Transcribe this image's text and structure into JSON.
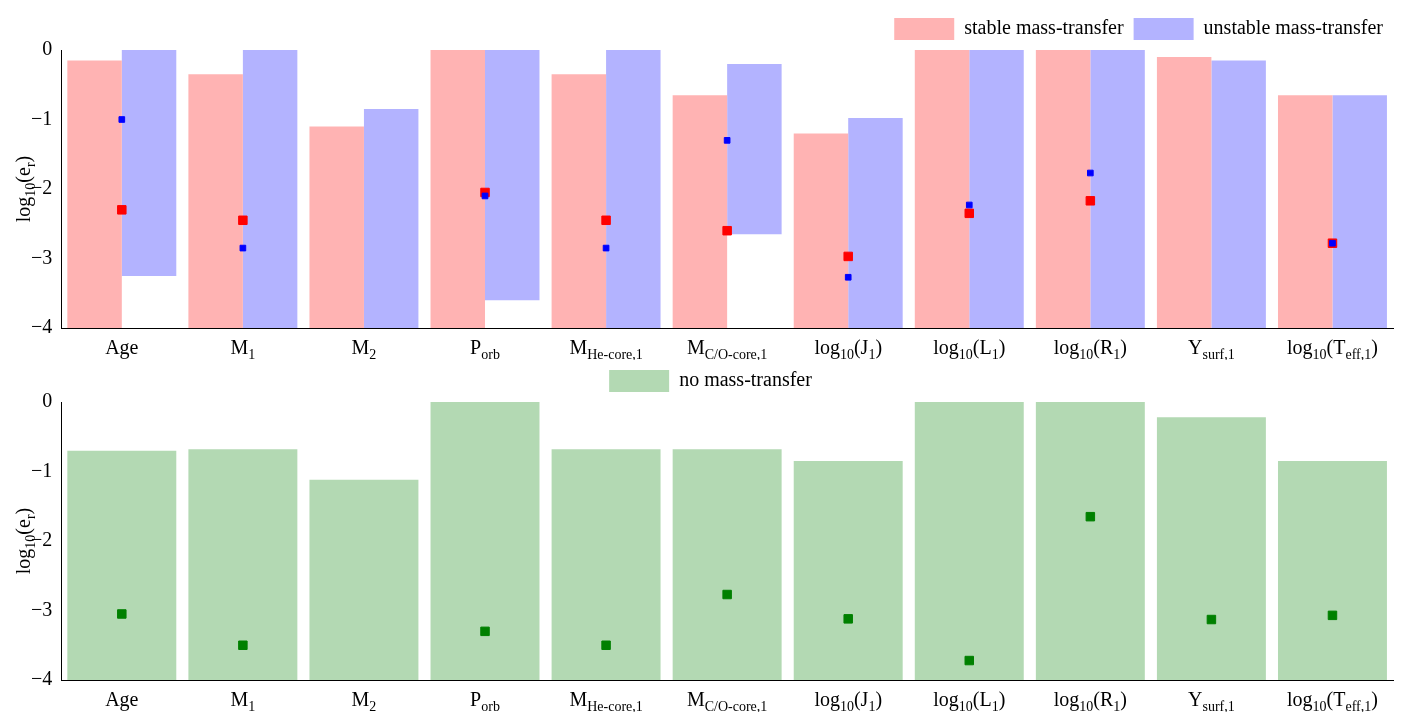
{
  "chart_data": [
    {
      "type": "bar",
      "ylabel": "log$_{10}$(e$_{r}$)",
      "categories": [
        "Age",
        "M$_{1}$",
        "M$_{2}$",
        "P$_{orb}$",
        "M$_{He-core,1}$",
        "M$_{C/O-core,1}$",
        "log$_{10}$(J$_{1}$)",
        "log$_{10}$(L$_{1}$)",
        "log$_{10}$(R$_{1}$)",
        "Y$_{surf,1}$",
        "log$_{10}$(T$_{eff,1}$)"
      ],
      "series": [
        {
          "name": "stable mass-transfer",
          "color": "#ffb3b3",
          "base": [
            -4,
            -4,
            -4,
            -4,
            -4,
            -4,
            -4,
            -4,
            -4,
            -4,
            -4
          ],
          "values": [
            3.85,
            3.65,
            2.9,
            4,
            3.65,
            3.35,
            2.8,
            4,
            4,
            3.9,
            3.35
          ]
        },
        {
          "name": "unstable mass-transfer",
          "color": "#b3b3ff",
          "base": [
            -3.25,
            -4,
            -4,
            -3.6,
            -4,
            -2.65,
            -4,
            -4,
            -4,
            -4,
            -4
          ],
          "values": [
            3.25,
            4,
            3.15,
            3.6,
            4,
            2.45,
            3.02,
            4,
            4,
            3.85,
            3.35
          ]
        },
        {
          "type": "scatter",
          "color": "#ff0000",
          "values": [
            -2.3,
            -2.45,
            null,
            -2.05,
            -2.45,
            -2.6,
            -2.97,
            -2.35,
            -2.17,
            null,
            -2.78
          ]
        },
        {
          "type": "scatter",
          "color": "#0000ff",
          "values": [
            -1.0,
            -2.85,
            null,
            -2.1,
            -2.85,
            -1.3,
            -3.27,
            -2.23,
            -1.77,
            null,
            -2.78
          ]
        }
      ],
      "ylim": [
        -4,
        0
      ],
      "yticks": [
        {
          "value": -4,
          "label": "−4"
        },
        {
          "value": -3,
          "label": "−3"
        },
        {
          "value": -2,
          "label": "−2"
        },
        {
          "value": -1,
          "label": "−1"
        },
        0
      ],
      "legend": "top right",
      "marker": "square"
    },
    {
      "type": "bar",
      "ylabel": "log$_{10}$(e$_{r}$)",
      "categories": [
        "Age",
        "M$_{1}$",
        "M$_{2}$",
        "P$_{orb}$",
        "M$_{He-core,1}$",
        "M$_{C/O-core,1}$",
        "log$_{10}$(J$_{1}$)",
        "log$_{10}$(L$_{1}$)",
        "log$_{10}$(R$_{1}$)",
        "Y$_{surf,1}$",
        "log$_{10}$(T$_{eff,1}$)"
      ],
      "series": [
        {
          "name": "no mass-transfer",
          "color": "#b3d9b3",
          "base": [
            -4,
            -4,
            -4,
            -4,
            -4,
            -4,
            -4,
            -4,
            -4,
            -4,
            -4
          ],
          "values": [
            3.3,
            3.32,
            2.88,
            4,
            3.32,
            3.32,
            3.15,
            4,
            4,
            3.78,
            3.15
          ]
        },
        {
          "type": "scatter",
          "color": "#008000",
          "values": [
            -3.05,
            -3.5,
            null,
            -3.3,
            -3.5,
            -2.77,
            -3.12,
            -3.72,
            -1.65,
            -3.13,
            -3.07
          ]
        }
      ],
      "ylim": [
        -4,
        0
      ],
      "yticks": [
        {
          "value": -4,
          "label": "−4"
        },
        {
          "value": -3,
          "label": "−3"
        },
        {
          "value": -2,
          "label": "−2"
        },
        {
          "value": -1,
          "label": "−1"
        },
        0
      ],
      "legend": "top",
      "marker": "square"
    }
  ]
}
